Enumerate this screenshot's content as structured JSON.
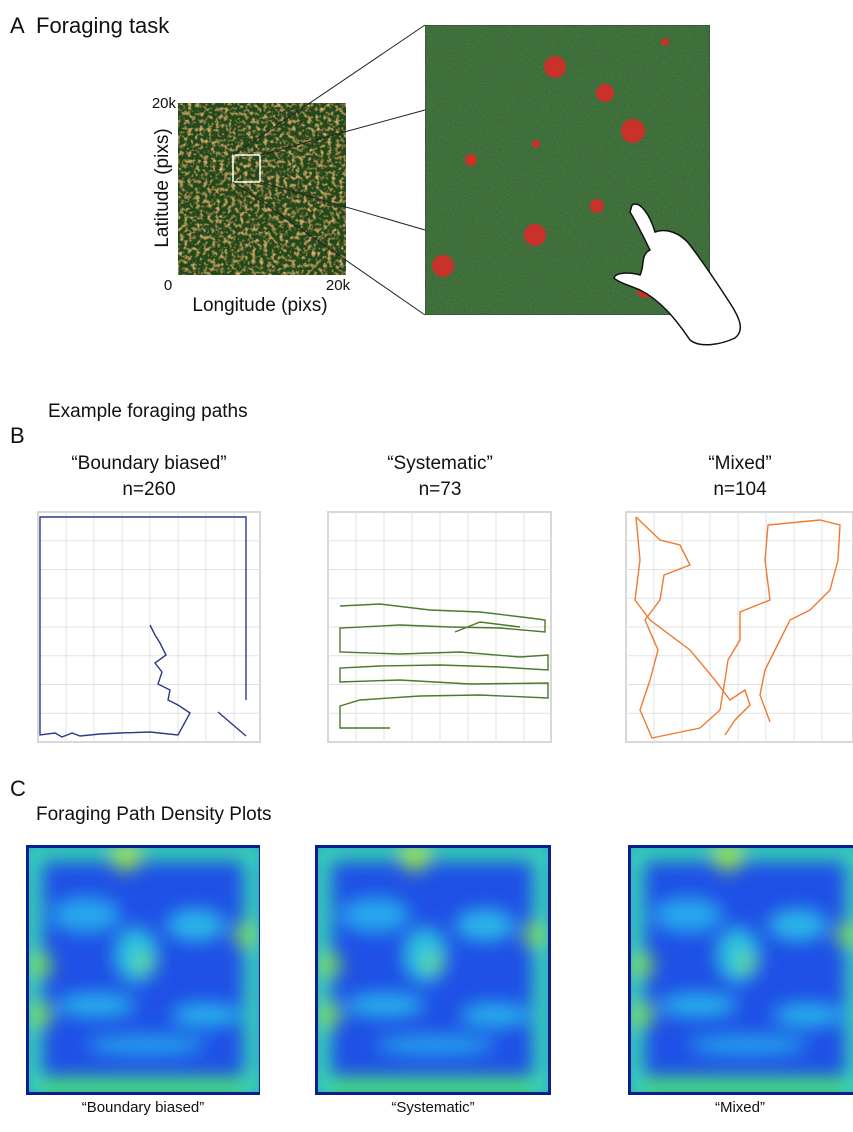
{
  "panel_a": {
    "letter": "A",
    "title": "Foraging task",
    "y_label": "Latitude (pixs)",
    "x_label": "Longitude (pixs)",
    "tick_top": "20k",
    "tick_origin": "0",
    "tick_right": "20k"
  },
  "panel_b": {
    "letter": "B",
    "title": "Example foraging paths",
    "plots": [
      {
        "label": "“Boundary biased”",
        "count": "n=260"
      },
      {
        "label": "“Systematic”",
        "count": "n=73"
      },
      {
        "label": "“Mixed”",
        "count": "n=104"
      }
    ]
  },
  "panel_c": {
    "letter": "C",
    "title": "Foraging Path Density Plots",
    "labels": [
      "“Boundary biased”",
      "“Systematic”",
      "“Mixed”"
    ]
  }
}
